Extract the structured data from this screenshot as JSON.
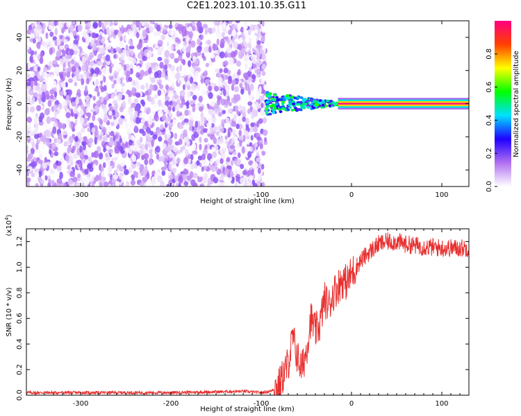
{
  "title": "C2E1.2023.101.10.35.G11",
  "chart_data": [
    {
      "type": "heatmap",
      "xlabel": "Height of straight line (km)",
      "ylabel": "Frequency (Hz)",
      "xlim": [
        -360,
        130
      ],
      "ylim": [
        -50,
        50
      ],
      "xticks": [
        -300,
        -200,
        -100,
        0,
        100
      ],
      "yticks": [
        -40,
        -20,
        0,
        20,
        40
      ],
      "colorbar": {
        "label": "Normalized spectral amplitude",
        "range": [
          0.0,
          1.0
        ],
        "ticks": [
          "0.0",
          "0.2",
          "0.4",
          "0.6",
          "0.8"
        ],
        "colors": [
          "#ffffff",
          "#b070f0",
          "#2000ff",
          "#00e0ff",
          "#00ff00",
          "#ffff00",
          "#ff4000",
          "#ff0080"
        ]
      },
      "regions": [
        {
          "x_range": [
            -360,
            -95
          ],
          "freq_range": [
            -50,
            50
          ],
          "amplitude": 0.15,
          "description_level": "noise"
        },
        {
          "x_range": [
            -95,
            -15
          ],
          "freq_center": 0,
          "amplitude": 0.5
        },
        {
          "x_range": [
            -15,
            130
          ],
          "freq_center": 0,
          "amplitude": 1.0
        }
      ]
    },
    {
      "type": "line",
      "xlabel": "Height of straight line (km)",
      "ylabel": "SNR (10 * v/v)",
      "y_multiplier": "(x10",
      "y_multiplier_exp": "4",
      "y_multiplier_close": ")",
      "xlim": [
        -360,
        130
      ],
      "ylim": [
        0,
        1.3
      ],
      "xticks": [
        -300,
        -200,
        -100,
        0,
        100
      ],
      "yticks": [
        "0.0",
        "0.2",
        "0.4",
        "0.6",
        "0.8",
        "1.0",
        "1.2"
      ],
      "series": [
        {
          "color": "#e83030",
          "x": [
            -360,
            -300,
            -200,
            -120,
            -100,
            -90,
            -80,
            -70,
            -65,
            -60,
            -55,
            -50,
            -45,
            -40,
            -35,
            -30,
            -25,
            -20,
            -15,
            -10,
            -5,
            0,
            10,
            20,
            30,
            40,
            50,
            60,
            80,
            100,
            130
          ],
          "y": [
            0.02,
            0.02,
            0.02,
            0.03,
            0.02,
            0.03,
            0.08,
            0.25,
            0.45,
            0.3,
            0.2,
            0.35,
            0.6,
            0.5,
            0.55,
            0.75,
            0.7,
            0.8,
            0.85,
            0.9,
            0.88,
            0.95,
            1.05,
            1.12,
            1.18,
            1.2,
            1.2,
            1.18,
            1.16,
            1.15,
            1.15
          ]
        }
      ]
    }
  ]
}
